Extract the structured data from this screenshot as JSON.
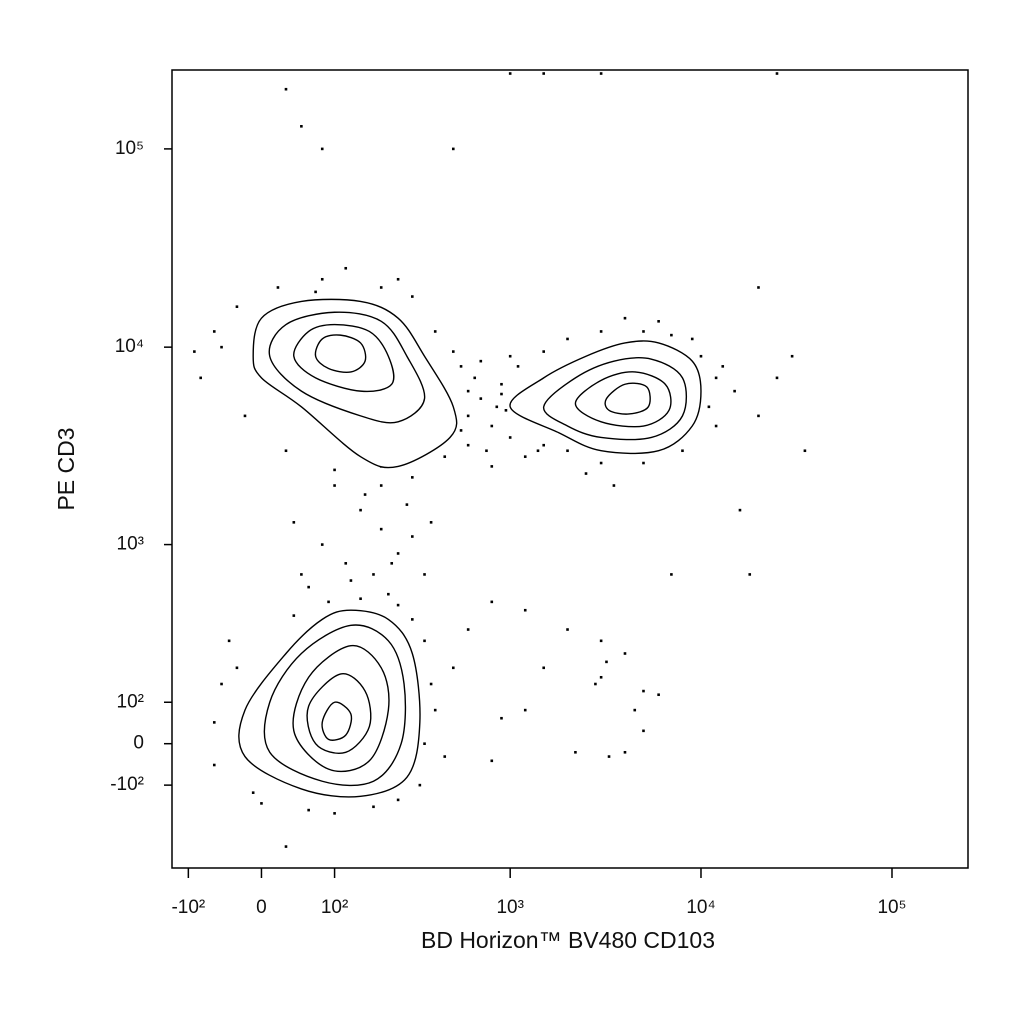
{
  "chart_data": {
    "type": "contour",
    "x_label": "BD Horizon™ BV480 CD103",
    "y_label": "PE CD3",
    "xscale": "biexponential",
    "yscale": "biexponential",
    "xlim": [
      -130,
      250000
    ],
    "ylim": [
      -400,
      250000
    ],
    "xticks": [
      {
        "value": -100,
        "label": "-10²"
      },
      0,
      {
        "value": 100,
        "label": "10²"
      },
      {
        "value": 1000,
        "label": "10³"
      },
      {
        "value": 10000,
        "label": "10⁴"
      },
      {
        "value": 100000,
        "label": "10⁵"
      }
    ],
    "yticks": [
      {
        "value": -100,
        "label": "-10²"
      },
      0,
      {
        "value": 100,
        "label": "10²"
      },
      {
        "value": 1000,
        "label": "10³"
      },
      {
        "value": 10000,
        "label": "10⁴"
      },
      {
        "value": 100000,
        "label": "10⁵"
      }
    ],
    "color": "#000000",
    "contours": [
      {
        "x": [
          -10,
          0,
          50,
          150,
          250,
          350,
          500,
          480,
          250,
          150,
          50,
          0
        ],
        "y": [
          9000,
          14000,
          17000,
          17000,
          14000,
          9000,
          5000,
          3500,
          2500,
          2800,
          5000,
          7000
        ]
      },
      {
        "x": [
          10,
          30,
          100,
          200,
          280,
          350,
          250,
          150,
          50
        ],
        "y": [
          9000,
          13000,
          15000,
          13500,
          9000,
          5500,
          4200,
          4500,
          6000
        ]
      },
      {
        "x": [
          40,
          60,
          100,
          170,
          220,
          230,
          150,
          70
        ],
        "y": [
          9000,
          12000,
          13000,
          12000,
          9000,
          6500,
          6000,
          7000
        ]
      },
      {
        "x": [
          70,
          80,
          110,
          150,
          160,
          130,
          90
        ],
        "y": [
          9000,
          11000,
          11500,
          10500,
          8500,
          7500,
          7800
        ]
      },
      {
        "x": [
          1000,
          1500,
          2500,
          4000,
          6000,
          9000,
          10000,
          9000,
          6000,
          3000,
          1800
        ],
        "y": [
          5000,
          7000,
          9000,
          10500,
          10500,
          8500,
          6000,
          4000,
          3000,
          3000,
          3700
        ]
      },
      {
        "x": [
          1500,
          2200,
          3500,
          5500,
          8000,
          8000,
          5500,
          3000,
          2000
        ],
        "y": [
          5000,
          7000,
          8500,
          8700,
          7000,
          4500,
          3500,
          3500,
          4000
        ]
      },
      {
        "x": [
          2200,
          3000,
          4500,
          6500,
          6800,
          5000,
          3000
        ],
        "y": [
          5200,
          6800,
          7500,
          6500,
          4800,
          4000,
          4200
        ]
      },
      {
        "x": [
          3200,
          4000,
          5200,
          5300,
          4200,
          3300
        ],
        "y": [
          5500,
          6500,
          6300,
          5000,
          4600,
          4800
        ]
      },
      {
        "x": [
          130,
          220,
          300,
          330,
          280,
          150,
          50,
          -20,
          -20,
          30,
          80
        ],
        "y": [
          450,
          400,
          250,
          50,
          -80,
          -130,
          -110,
          -30,
          80,
          250,
          400
        ]
      },
      {
        "x": [
          130,
          220,
          270,
          260,
          180,
          80,
          10,
          10,
          50
        ],
        "y": [
          370,
          300,
          150,
          0,
          -90,
          -90,
          -20,
          100,
          250
        ]
      },
      {
        "x": [
          130,
          200,
          220,
          170,
          90,
          40,
          60
        ],
        "y": [
          280,
          200,
          80,
          -40,
          -60,
          30,
          170
        ]
      },
      {
        "x": [
          110,
          160,
          170,
          120,
          70,
          60
        ],
        "y": [
          180,
          130,
          40,
          -20,
          0,
          90
        ]
      },
      {
        "x": [
          100,
          130,
          120,
          90,
          80
        ],
        "y": [
          100,
          70,
          20,
          10,
          50
        ]
      }
    ],
    "points": {
      "x": [
        -60,
        -80,
        -30,
        20,
        80,
        200,
        300,
        400,
        550,
        600,
        450,
        300,
        200,
        100,
        30,
        -20,
        -50,
        120,
        250,
        -90,
        350,
        70,
        600,
        700,
        800,
        900,
        1000,
        650,
        750,
        850,
        1100,
        1200,
        550,
        950,
        1300,
        700,
        500,
        1400,
        800,
        1000,
        600,
        900,
        1500,
        2000,
        3000,
        5000,
        7000,
        10000,
        12000,
        11000,
        12000,
        8000,
        5000,
        3000,
        2000,
        1500,
        13000,
        15000,
        4000,
        6000,
        9000,
        2500,
        16000,
        20000,
        3500,
        100,
        150,
        200,
        80,
        250,
        120,
        180,
        60,
        220,
        300,
        40,
        160,
        280,
        130,
        90,
        350,
        200,
        50,
        380,
        230,
        -40,
        -50,
        -60,
        0,
        100,
        250,
        350,
        380,
        350,
        250,
        150,
        40,
        -30,
        400,
        330,
        -10,
        300,
        60,
        180,
        -60,
        800,
        1200,
        600,
        2000,
        3000,
        3200,
        2800,
        4000,
        5000,
        4500,
        3300,
        6000,
        1500,
        900,
        1200,
        2200,
        5000,
        500,
        450,
        30,
        80,
        500,
        50,
        30,
        20000,
        35000,
        30000,
        25000,
        18000,
        7000,
        3000,
        4000,
        800,
        1000,
        1500,
        3000,
        25000
      ],
      "y": [
        12000,
        7000,
        16000,
        20000,
        22000,
        20000,
        18000,
        12000,
        8000,
        6000,
        2800,
        2200,
        2000,
        2400,
        3000,
        4500,
        10000,
        25000,
        22000,
        9500,
        3000,
        19000,
        4500,
        5500,
        4000,
        6500,
        3500,
        7000,
        3000,
        5000,
        8000,
        2800,
        3800,
        4800,
        6000,
        8500,
        9500,
        3000,
        2500,
        9000,
        3200,
        5800,
        9500,
        11000,
        12000,
        12000,
        11500,
        9000,
        7000,
        5000,
        4000,
        3000,
        2600,
        2600,
        3000,
        3200,
        8000,
        6000,
        14000,
        13500,
        11000,
        2300,
        1500,
        4500,
        2000,
        2000,
        1500,
        1200,
        1000,
        900,
        800,
        700,
        600,
        550,
        1100,
        1300,
        1800,
        1600,
        650,
        500,
        700,
        2500,
        700,
        1300,
        800,
        300,
        150,
        -50,
        -150,
        -180,
        -140,
        0,
        150,
        300,
        480,
        520,
        420,
        200,
        80,
        -100,
        -120,
        400,
        -170,
        -160,
        50,
        500,
        450,
        350,
        350,
        300,
        220,
        150,
        250,
        130,
        80,
        -30,
        120,
        200,
        60,
        80,
        -20,
        30,
        200,
        -30,
        -300,
        100000,
        100000,
        130000,
        200000,
        20000,
        3000,
        9000,
        7000,
        700,
        700,
        170,
        -20,
        -40,
        240000,
        240000,
        240000,
        240000
      ]
    }
  }
}
